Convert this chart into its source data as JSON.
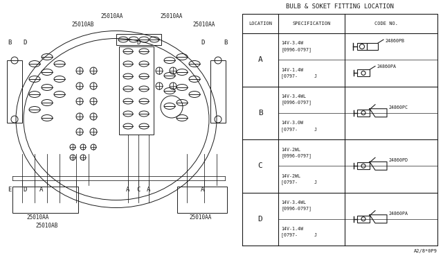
{
  "title": "BULB & SOKET FITTING LOCATION",
  "bg_color": "#ffffff",
  "line_color": "#1a1a1a",
  "footer_text": "A2/8*0P9",
  "rows": [
    {
      "location": "A",
      "spec1": "14V-3.4W\n[0996-0797]",
      "spec2": "14V-1.4W\n[0797-      J",
      "code1": "24860PB",
      "code2": "24860PA",
      "connector1": "large",
      "connector2": "small"
    },
    {
      "location": "B",
      "spec1": "14V-3.4WL\n[0996-0797]",
      "spec2": "14V-3.0W\n[0797-      J",
      "code1": "24860PC",
      "code2": "",
      "connector1": "medium",
      "connector2": "medium"
    },
    {
      "location": "C",
      "spec1": "14V-2WL\n[0996-0797]",
      "spec2": "14V-2WL\n[0797-      J",
      "code1": "24860PD",
      "code2": "",
      "connector1": "medium",
      "connector2": "medium"
    },
    {
      "location": "D",
      "spec1": "14V-3.4WL\n[0996-0797]",
      "spec2": "14V-1.4W\n[0797-      J",
      "code1": "24860PA",
      "code2": "",
      "connector1": "medium",
      "connector2": "small"
    }
  ]
}
